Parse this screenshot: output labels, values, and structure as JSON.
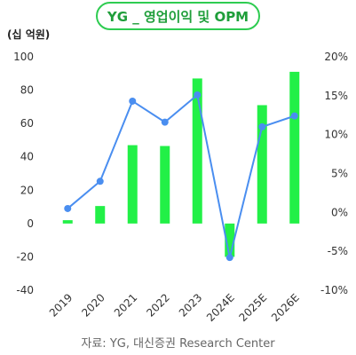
{
  "chart_data": {
    "type": "bar",
    "title": "YG _ 영업이익 및 OPM",
    "unit_label": "(십 억원)",
    "source": "자료: YG, 대신증권 Research Center",
    "categories": [
      "2019",
      "2020",
      "2021",
      "2022",
      "2023",
      "2024E",
      "2025E",
      "2026E"
    ],
    "ylim": [
      -40,
      100
    ],
    "yticks": [
      -40,
      -20,
      0,
      20,
      40,
      60,
      80,
      100
    ],
    "y2lim": [
      -10,
      20
    ],
    "y2ticks": [
      -10,
      -5,
      0,
      5,
      10,
      15,
      20
    ],
    "y2tick_labels": [
      "-10%",
      "-5%",
      "0%",
      "5%",
      "10%",
      "15%",
      "20%"
    ],
    "grid": false,
    "legend": "none",
    "series": [
      {
        "kind": "bar",
        "axis": "left",
        "color": "#22f047",
        "values": [
          2,
          10.5,
          47,
          46.5,
          87,
          -20,
          71,
          91
        ]
      },
      {
        "kind": "line",
        "axis": "right",
        "color": "#4a8ef0",
        "values": [
          0.5,
          4,
          14.3,
          11.6,
          15.1,
          -5.8,
          11,
          12.4
        ]
      }
    ]
  }
}
